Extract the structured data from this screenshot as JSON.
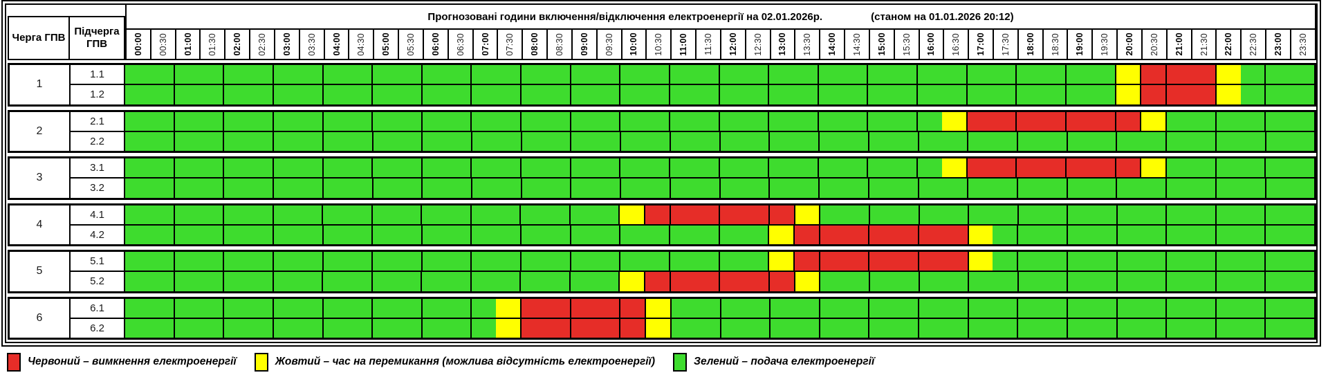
{
  "chart_data": {
    "type": "heatmap",
    "title": "Прогнозовані години включення/відключення електроенергії на 02.01.2026р.",
    "status_note": "(станом на 01.01.2026 20:12)",
    "row_axis": {
      "queue_header": "Черга ГПВ",
      "subqueue_header": "Підчерга ГПВ"
    },
    "slot_minutes": 30,
    "time_slots": [
      "00:00",
      "00:30",
      "01:00",
      "01:30",
      "02:00",
      "02:30",
      "03:00",
      "03:30",
      "04:00",
      "04:30",
      "05:00",
      "05:30",
      "06:00",
      "06:30",
      "07:00",
      "07:30",
      "08:00",
      "08:30",
      "09:00",
      "09:30",
      "10:00",
      "10:30",
      "11:00",
      "11:30",
      "12:00",
      "12:30",
      "13:00",
      "13:30",
      "14:00",
      "14:30",
      "15:00",
      "15:30",
      "16:00",
      "16:30",
      "17:00",
      "17:30",
      "18:00",
      "18:30",
      "19:00",
      "19:30",
      "20:00",
      "20:30",
      "21:00",
      "21:30",
      "22:00",
      "22:30",
      "23:00",
      "23:30"
    ],
    "colors": {
      "green": "#3edc2e",
      "yellow": "#ffff00",
      "red": "#e62d28"
    },
    "groups": [
      {
        "queue": "1",
        "subqueues": [
          {
            "label": "1.1",
            "segments": [
              {
                "state": "green",
                "from": "00:00",
                "to": "20:00"
              },
              {
                "state": "yellow",
                "from": "20:00",
                "to": "20:30"
              },
              {
                "state": "red",
                "from": "20:30",
                "to": "22:00"
              },
              {
                "state": "yellow",
                "from": "22:00",
                "to": "22:30"
              },
              {
                "state": "green",
                "from": "22:30",
                "to": "24:00"
              }
            ]
          },
          {
            "label": "1.2",
            "segments": [
              {
                "state": "green",
                "from": "00:00",
                "to": "20:00"
              },
              {
                "state": "yellow",
                "from": "20:00",
                "to": "20:30"
              },
              {
                "state": "red",
                "from": "20:30",
                "to": "22:00"
              },
              {
                "state": "yellow",
                "from": "22:00",
                "to": "22:30"
              },
              {
                "state": "green",
                "from": "22:30",
                "to": "24:00"
              }
            ]
          }
        ]
      },
      {
        "queue": "2",
        "subqueues": [
          {
            "label": "2.1",
            "segments": [
              {
                "state": "green",
                "from": "00:00",
                "to": "16:30"
              },
              {
                "state": "yellow",
                "from": "16:30",
                "to": "17:00"
              },
              {
                "state": "red",
                "from": "17:00",
                "to": "20:30"
              },
              {
                "state": "yellow",
                "from": "20:30",
                "to": "21:00"
              },
              {
                "state": "green",
                "from": "21:00",
                "to": "24:00"
              }
            ]
          },
          {
            "label": "2.2",
            "segments": [
              {
                "state": "green",
                "from": "00:00",
                "to": "24:00"
              }
            ]
          }
        ]
      },
      {
        "queue": "3",
        "subqueues": [
          {
            "label": "3.1",
            "segments": [
              {
                "state": "green",
                "from": "00:00",
                "to": "16:30"
              },
              {
                "state": "yellow",
                "from": "16:30",
                "to": "17:00"
              },
              {
                "state": "red",
                "from": "17:00",
                "to": "20:30"
              },
              {
                "state": "yellow",
                "from": "20:30",
                "to": "21:00"
              },
              {
                "state": "green",
                "from": "21:00",
                "to": "24:00"
              }
            ]
          },
          {
            "label": "3.2",
            "segments": [
              {
                "state": "green",
                "from": "00:00",
                "to": "24:00"
              }
            ]
          }
        ]
      },
      {
        "queue": "4",
        "subqueues": [
          {
            "label": "4.1",
            "segments": [
              {
                "state": "green",
                "from": "00:00",
                "to": "10:00"
              },
              {
                "state": "yellow",
                "from": "10:00",
                "to": "10:30"
              },
              {
                "state": "red",
                "from": "10:30",
                "to": "13:30"
              },
              {
                "state": "yellow",
                "from": "13:30",
                "to": "14:00"
              },
              {
                "state": "green",
                "from": "14:00",
                "to": "24:00"
              }
            ]
          },
          {
            "label": "4.2",
            "segments": [
              {
                "state": "green",
                "from": "00:00",
                "to": "13:00"
              },
              {
                "state": "yellow",
                "from": "13:00",
                "to": "13:30"
              },
              {
                "state": "red",
                "from": "13:30",
                "to": "17:00"
              },
              {
                "state": "yellow",
                "from": "17:00",
                "to": "17:30"
              },
              {
                "state": "green",
                "from": "17:30",
                "to": "24:00"
              }
            ]
          }
        ]
      },
      {
        "queue": "5",
        "subqueues": [
          {
            "label": "5.1",
            "segments": [
              {
                "state": "green",
                "from": "00:00",
                "to": "13:00"
              },
              {
                "state": "yellow",
                "from": "13:00",
                "to": "13:30"
              },
              {
                "state": "red",
                "from": "13:30",
                "to": "17:00"
              },
              {
                "state": "yellow",
                "from": "17:00",
                "to": "17:30"
              },
              {
                "state": "green",
                "from": "17:30",
                "to": "24:00"
              }
            ]
          },
          {
            "label": "5.2",
            "segments": [
              {
                "state": "green",
                "from": "00:00",
                "to": "10:00"
              },
              {
                "state": "yellow",
                "from": "10:00",
                "to": "10:30"
              },
              {
                "state": "red",
                "from": "10:30",
                "to": "13:30"
              },
              {
                "state": "yellow",
                "from": "13:30",
                "to": "14:00"
              },
              {
                "state": "green",
                "from": "14:00",
                "to": "24:00"
              }
            ]
          }
        ]
      },
      {
        "queue": "6",
        "subqueues": [
          {
            "label": "6.1",
            "segments": [
              {
                "state": "green",
                "from": "00:00",
                "to": "07:30"
              },
              {
                "state": "yellow",
                "from": "07:30",
                "to": "08:00"
              },
              {
                "state": "red",
                "from": "08:00",
                "to": "10:30"
              },
              {
                "state": "yellow",
                "from": "10:30",
                "to": "11:00"
              },
              {
                "state": "green",
                "from": "11:00",
                "to": "24:00"
              }
            ]
          },
          {
            "label": "6.2",
            "segments": [
              {
                "state": "green",
                "from": "00:00",
                "to": "07:30"
              },
              {
                "state": "yellow",
                "from": "07:30",
                "to": "08:00"
              },
              {
                "state": "red",
                "from": "08:00",
                "to": "10:30"
              },
              {
                "state": "yellow",
                "from": "10:30",
                "to": "11:00"
              },
              {
                "state": "green",
                "from": "11:00",
                "to": "24:00"
              }
            ]
          }
        ]
      }
    ],
    "legend": [
      {
        "color_key": "red",
        "label": "Червоний – вимкнення електроенергії"
      },
      {
        "color_key": "yellow",
        "label": "Жовтий – час на перемикання (можлива відсутність електроенергії)"
      },
      {
        "color_key": "green",
        "label": "Зелений – подача електроенергії"
      }
    ]
  }
}
